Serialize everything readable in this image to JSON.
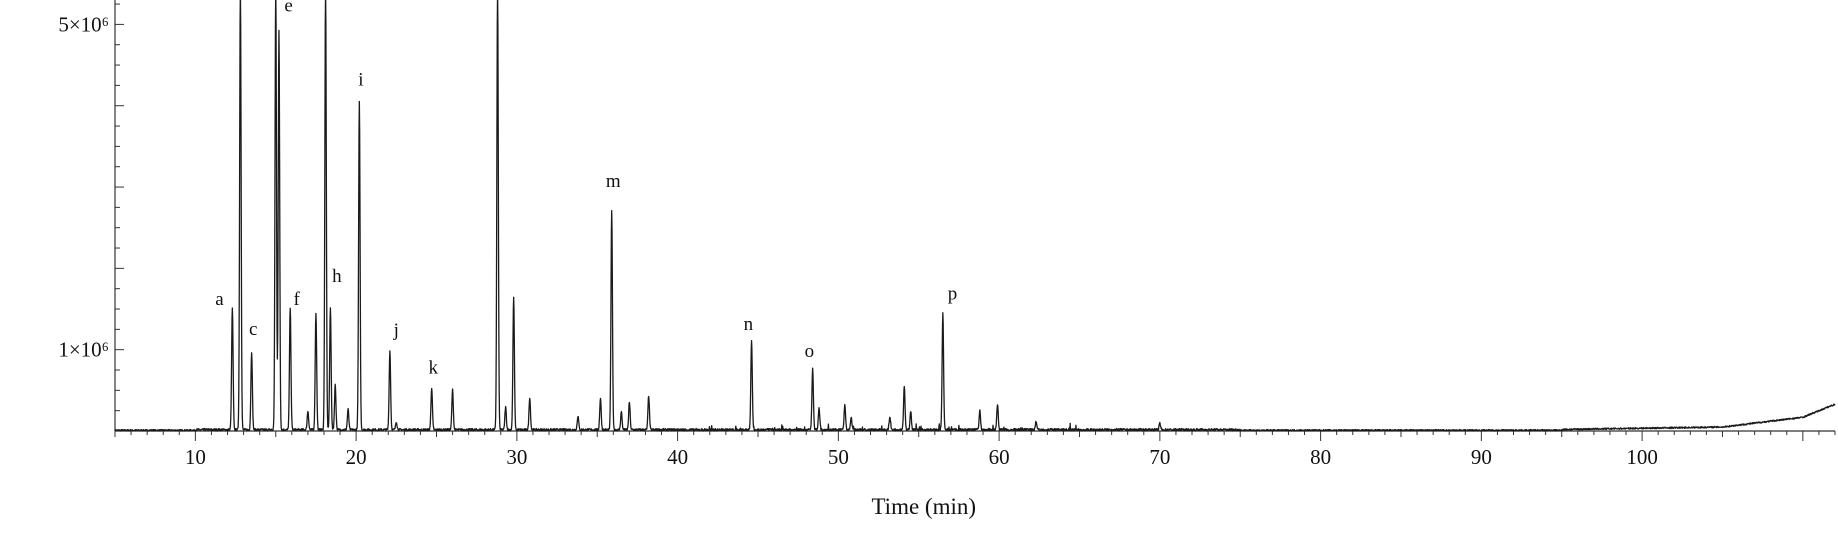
{
  "chart_data": {
    "type": "line",
    "xlabel": "Time (min)",
    "ylabel": "",
    "xlim": [
      5,
      112
    ],
    "ylim": [
      0,
      5300000
    ],
    "x_ticks": [
      10,
      20,
      30,
      40,
      50,
      60,
      70,
      80,
      90,
      100
    ],
    "x_tick_labels": [
      "10",
      "20",
      "30",
      "40",
      "50",
      "60",
      "70",
      "80",
      "90",
      "100"
    ],
    "y_tick_labels": [
      {
        "value": 5000000,
        "label": "5×10⁶"
      },
      {
        "value": 1000000,
        "label": "1×10⁶"
      }
    ],
    "peaks": [
      {
        "x": 12.3,
        "y": 1500000
      },
      {
        "x": 12.8,
        "y": 5500000
      },
      {
        "x": 13.5,
        "y": 960000
      },
      {
        "x": 15.0,
        "y": 5500000
      },
      {
        "x": 15.2,
        "y": 4900000
      },
      {
        "x": 15.9,
        "y": 1500000
      },
      {
        "x": 17.0,
        "y": 230000
      },
      {
        "x": 17.5,
        "y": 1440000
      },
      {
        "x": 18.1,
        "y": 5500000
      },
      {
        "x": 18.4,
        "y": 1500000
      },
      {
        "x": 18.7,
        "y": 550000
      },
      {
        "x": 19.5,
        "y": 250000
      },
      {
        "x": 20.2,
        "y": 4050000
      },
      {
        "x": 22.1,
        "y": 970000
      },
      {
        "x": 22.5,
        "y": 100000
      },
      {
        "x": 24.7,
        "y": 520000
      },
      {
        "x": 26.0,
        "y": 490000
      },
      {
        "x": 28.8,
        "y": 5500000
      },
      {
        "x": 29.3,
        "y": 280000
      },
      {
        "x": 29.8,
        "y": 1630000
      },
      {
        "x": 30.8,
        "y": 400000
      },
      {
        "x": 33.8,
        "y": 170000
      },
      {
        "x": 35.2,
        "y": 390000
      },
      {
        "x": 35.9,
        "y": 2700000
      },
      {
        "x": 36.5,
        "y": 220000
      },
      {
        "x": 37.0,
        "y": 340000
      },
      {
        "x": 38.2,
        "y": 420000
      },
      {
        "x": 44.6,
        "y": 1100000
      },
      {
        "x": 48.4,
        "y": 750000
      },
      {
        "x": 48.8,
        "y": 260000
      },
      {
        "x": 50.4,
        "y": 300000
      },
      {
        "x": 50.8,
        "y": 150000
      },
      {
        "x": 53.2,
        "y": 150000
      },
      {
        "x": 54.1,
        "y": 540000
      },
      {
        "x": 54.5,
        "y": 230000
      },
      {
        "x": 56.5,
        "y": 1430000
      },
      {
        "x": 58.8,
        "y": 240000
      },
      {
        "x": 59.9,
        "y": 320000
      },
      {
        "x": 62.3,
        "y": 100000
      },
      {
        "x": 70.0,
        "y": 80000
      }
    ],
    "annotations": [
      {
        "label": "a",
        "x": 11.5,
        "y": 1550000
      },
      {
        "label": "c",
        "x": 13.6,
        "y": 1180000
      },
      {
        "label": "e",
        "x": 15.8,
        "y": 5160000
      },
      {
        "label": "f",
        "x": 16.3,
        "y": 1550000
      },
      {
        "label": "h",
        "x": 18.8,
        "y": 1830000
      },
      {
        "label": "i",
        "x": 20.3,
        "y": 4250000
      },
      {
        "label": "j",
        "x": 22.5,
        "y": 1170000
      },
      {
        "label": "k",
        "x": 24.8,
        "y": 710000
      },
      {
        "label": "m",
        "x": 36.0,
        "y": 3000000
      },
      {
        "label": "n",
        "x": 44.4,
        "y": 1240000
      },
      {
        "label": "o",
        "x": 48.2,
        "y": 910000
      },
      {
        "label": "p",
        "x": 57.1,
        "y": 1620000
      }
    ],
    "baseline_noise": 30000,
    "tail_rise": [
      {
        "x": 95,
        "y": 10000
      },
      {
        "x": 105,
        "y": 40000
      },
      {
        "x": 110,
        "y": 160000
      },
      {
        "x": 112,
        "y": 320000
      }
    ]
  }
}
